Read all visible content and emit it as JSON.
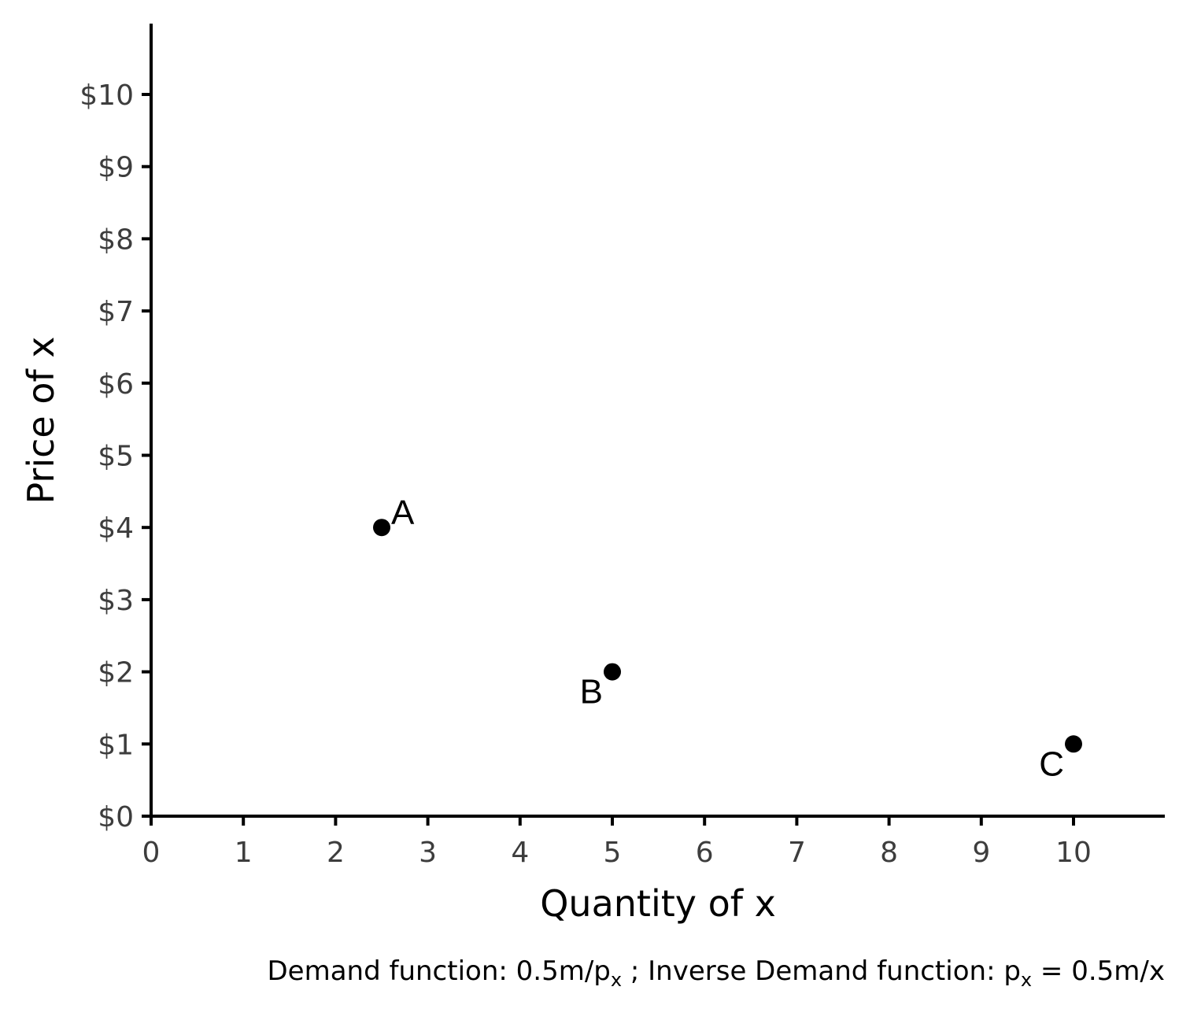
{
  "chart_data": {
    "type": "scatter",
    "xlabel": "Quantity of x",
    "ylabel": "Price of x",
    "xlim": [
      0,
      11
    ],
    "ylim": [
      0,
      11
    ],
    "x_ticks": [
      0,
      1,
      2,
      3,
      4,
      5,
      6,
      7,
      8,
      9,
      10
    ],
    "y_ticks": [
      0,
      1,
      2,
      3,
      4,
      5,
      6,
      7,
      8,
      9,
      10
    ],
    "x_tick_labels": [
      "0",
      "1",
      "2",
      "3",
      "4",
      "5",
      "6",
      "7",
      "8",
      "9",
      "10"
    ],
    "y_tick_labels": [
      "$0",
      "$1",
      "$2",
      "$3",
      "$4",
      "$5",
      "$6",
      "$7",
      "$8",
      "$9",
      "$10"
    ],
    "points": [
      {
        "label": "A",
        "x": 2.5,
        "y": 4,
        "label_position": "top-right"
      },
      {
        "label": "B",
        "x": 5,
        "y": 2,
        "label_position": "bottom-left"
      },
      {
        "label": "C",
        "x": 10,
        "y": 1,
        "label_position": "bottom-left"
      }
    ],
    "grid": false,
    "caption": {
      "part1": "Demand function: 0.5m/p",
      "sub1": "x",
      "part2": " ; Inverse Demand function: p",
      "sub2": "x",
      "part3": " = 0.5m/x"
    }
  },
  "colors": {
    "axis": "#000000",
    "point": "#000000",
    "tick_label": "#3d3d3d"
  }
}
